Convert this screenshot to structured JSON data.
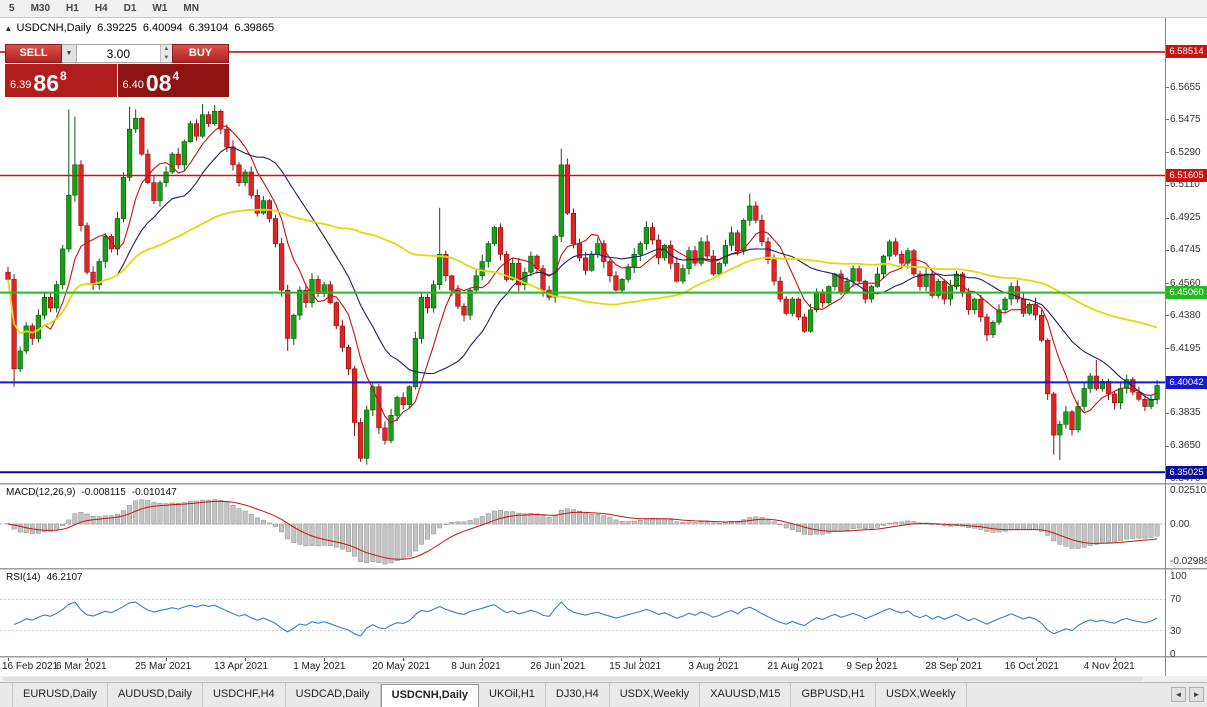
{
  "toolbar": {
    "timeframes": [
      "5",
      "M30",
      "H1",
      "H4",
      "D1",
      "W1",
      "MN"
    ]
  },
  "chart_header": {
    "collapse_icon": "▴",
    "symbol": "USDCNH,Daily",
    "open": "6.39225",
    "high": "6.40094",
    "low": "6.39104",
    "close": "6.39865"
  },
  "trade_panel": {
    "sell_label": "SELL",
    "buy_label": "BUY",
    "volume": "3.00",
    "dropdown_icon": "▼",
    "spin_up_icon": "▲",
    "spin_down_icon": "▼",
    "sell_price": {
      "prefix": "6.39",
      "big": "86",
      "sup": "8"
    },
    "buy_price": {
      "prefix": "6.40",
      "big": "08",
      "sup": "4"
    }
  },
  "chart_data": [
    {
      "type": "candlestick",
      "symbol": "USDCNH",
      "timeframe": "Daily",
      "price_range": [
        6.343,
        6.595
      ],
      "y_ticks": [
        "6.5655",
        "6.5475",
        "6.5290",
        "6.5110",
        "6.4925",
        "6.4745",
        "6.4560",
        "6.4380",
        "6.4195",
        "6.4015",
        "6.3835",
        "6.3650",
        "6.3470"
      ],
      "x_labels": [
        "16 Feb 2021",
        "6 Mar 2021",
        "25 Mar 2021",
        "13 Apr 2021",
        "1 May 2021",
        "20 May 2021",
        "8 Jun 2021",
        "26 Jun 2021",
        "15 Jul 2021",
        "3 Aug 2021",
        "21 Aug 2021",
        "9 Sep 2021",
        "28 Sep 2021",
        "16 Oct 2021",
        "4 Nov 2021"
      ],
      "hlines": [
        {
          "label": "6.58514",
          "price": 6.58514,
          "color": "#cc1111",
          "width": 1.6
        },
        {
          "label": "6.51605",
          "price": 6.51605,
          "color": "#cc1111",
          "width": 1.6
        },
        {
          "label": "6.45060",
          "price": 6.4506,
          "color": "#22bb22",
          "width": 2
        },
        {
          "label": "6.40042",
          "price": 6.40042,
          "color": "#1515e0",
          "width": 2
        },
        {
          "label": "6.35025",
          "price": 6.35025,
          "color": "#0b0b9e",
          "width": 2
        }
      ],
      "moving_averages": [
        {
          "period": 7,
          "color": "#c41414",
          "width": 1.1
        },
        {
          "period": 18,
          "color": "#1c2266",
          "width": 1.1
        },
        {
          "period": 55,
          "color": "#e6d70e",
          "width": 1.8
        }
      ],
      "colors": {
        "up": "#17a017",
        "up_stroke": "#0a560a",
        "down": "#e02424",
        "down_stroke": "#8a1010"
      },
      "first_open": 6.462,
      "closes": [
        6.458,
        6.408,
        6.418,
        6.432,
        6.425,
        6.438,
        6.448,
        6.442,
        6.455,
        6.475,
        6.505,
        6.522,
        6.488,
        6.462,
        6.455,
        6.468,
        6.482,
        6.475,
        6.492,
        6.515,
        6.542,
        6.548,
        6.528,
        6.512,
        6.502,
        6.512,
        6.518,
        6.528,
        6.522,
        6.535,
        6.545,
        6.538,
        6.55,
        6.545,
        6.552,
        6.542,
        6.532,
        6.522,
        6.512,
        6.518,
        6.505,
        6.495,
        6.502,
        6.492,
        6.478,
        6.452,
        6.425,
        6.438,
        6.452,
        6.445,
        6.458,
        6.45,
        6.455,
        6.445,
        6.432,
        6.42,
        6.408,
        6.378,
        6.358,
        6.385,
        6.398,
        6.375,
        6.368,
        6.382,
        6.392,
        6.388,
        6.398,
        6.425,
        6.448,
        6.442,
        6.455,
        6.472,
        6.46,
        6.452,
        6.443,
        6.438,
        6.452,
        6.46,
        6.468,
        6.478,
        6.487,
        6.472,
        6.458,
        6.467,
        6.455,
        6.462,
        6.471,
        6.464,
        6.452,
        6.448,
        6.482,
        6.522,
        6.495,
        6.478,
        6.47,
        6.463,
        6.472,
        6.478,
        6.468,
        6.46,
        6.452,
        6.458,
        6.465,
        6.472,
        6.478,
        6.487,
        6.48,
        6.47,
        6.477,
        6.467,
        6.457,
        6.464,
        6.474,
        6.467,
        6.479,
        6.471,
        6.461,
        6.467,
        6.477,
        6.484,
        6.474,
        6.491,
        6.499,
        6.491,
        6.479,
        6.469,
        6.457,
        6.447,
        6.439,
        6.447,
        6.437,
        6.429,
        6.441,
        6.451,
        6.445,
        6.454,
        6.461,
        6.451,
        6.457,
        6.464,
        6.457,
        6.447,
        6.454,
        6.461,
        6.471,
        6.479,
        6.472,
        6.467,
        6.474,
        6.461,
        6.454,
        6.461,
        6.449,
        6.457,
        6.447,
        6.454,
        6.461,
        6.451,
        6.441,
        6.447,
        6.437,
        6.427,
        6.434,
        6.441,
        6.447,
        6.454,
        6.447,
        6.439,
        6.444,
        6.438,
        6.424,
        6.394,
        6.371,
        6.377,
        6.384,
        6.374,
        6.387,
        6.397,
        6.404,
        6.397,
        6.401,
        6.394,
        6.389,
        6.397,
        6.402,
        6.395,
        6.391,
        6.387,
        6.391,
        6.3987
      ],
      "wick_overrides": {
        "0": {
          "h": 6.465
        },
        "1": {
          "l": 6.398
        },
        "10": {
          "h": 6.553
        },
        "11": {
          "h": 6.549
        },
        "20": {
          "h": 6.5545
        },
        "21": {
          "h": 6.553
        },
        "32": {
          "h": 6.556
        },
        "34": {
          "h": 6.5555
        },
        "46": {
          "l": 6.418
        },
        "57": {
          "l": 6.3705
        },
        "58": {
          "l": 6.356
        },
        "71": {
          "h": 6.498
        },
        "91": {
          "h": 6.531
        },
        "122": {
          "h": 6.506
        },
        "172": {
          "l": 6.36
        },
        "173": {
          "l": 6.357
        },
        "179": {
          "h": 6.413
        }
      }
    },
    {
      "type": "bar",
      "name": "MACD(12,26,9)",
      "value_text": "-0.008115",
      "signal_text": "-0.010147",
      "y_ticks": [
        "0.02510",
        "0.00",
        "-0.02988"
      ],
      "histogram_color": "#c4c4c4",
      "histogram_stroke": "#8a8a8a",
      "signal_color": "#c41414"
    },
    {
      "type": "line",
      "name": "RSI(14)",
      "value_text": "46.2107",
      "y_ticks": [
        "100",
        "70",
        "30",
        "0"
      ],
      "levels": [
        70,
        30
      ],
      "line_color": "#3a7dc4"
    }
  ],
  "tabs": {
    "items": [
      "EURUSD,Daily",
      "AUDUSD,Daily",
      "USDCHF,H4",
      "USDCAD,Daily",
      "USDCNH,Daily",
      "UKOil,H1",
      "DJ30,H4",
      "USDX,Weekly",
      "XAUUSD,M15",
      "GBPUSD,H1",
      "USDX,Weekly"
    ],
    "active_index": 4,
    "scroll_left_icon": "◄",
    "scroll_right_icon": "►"
  }
}
